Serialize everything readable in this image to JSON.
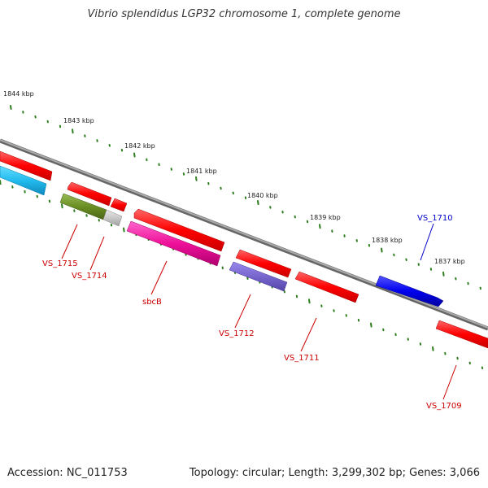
{
  "title": "Vibrio splendidus LGP32 chromosome 1, complete genome",
  "footer": {
    "accession": "Accession: NC_011753",
    "topology": "Topology: circular; Length: 3,299,302 bp; Genes: 3,066"
  },
  "ruler_labels": [
    "1844 kbp",
    "1843 kbp",
    "1842 kbp",
    "1841 kbp",
    "1840 kbp",
    "1839 kbp",
    "1838 kbp",
    "1837 kbp"
  ],
  "gene_labels": [
    "VS_1715",
    "VS_1714",
    "sbcB",
    "VS_1712",
    "VS_1711",
    "VS_1710",
    "VS_1709"
  ],
  "colors": {
    "red_feature": "#ff0000",
    "red_label": "#cc0000",
    "blue_feature": "#0000ee",
    "blue_label": "#0000cc",
    "cyan_feature": "#22bbee",
    "olive_feature": "#6b8e23",
    "grey_feature": "#c8c8c8",
    "pink_feature": "#ee1199",
    "purple_feature": "#7766cc",
    "backbone": "#888888",
    "ruler": "#2e7d1e"
  }
}
